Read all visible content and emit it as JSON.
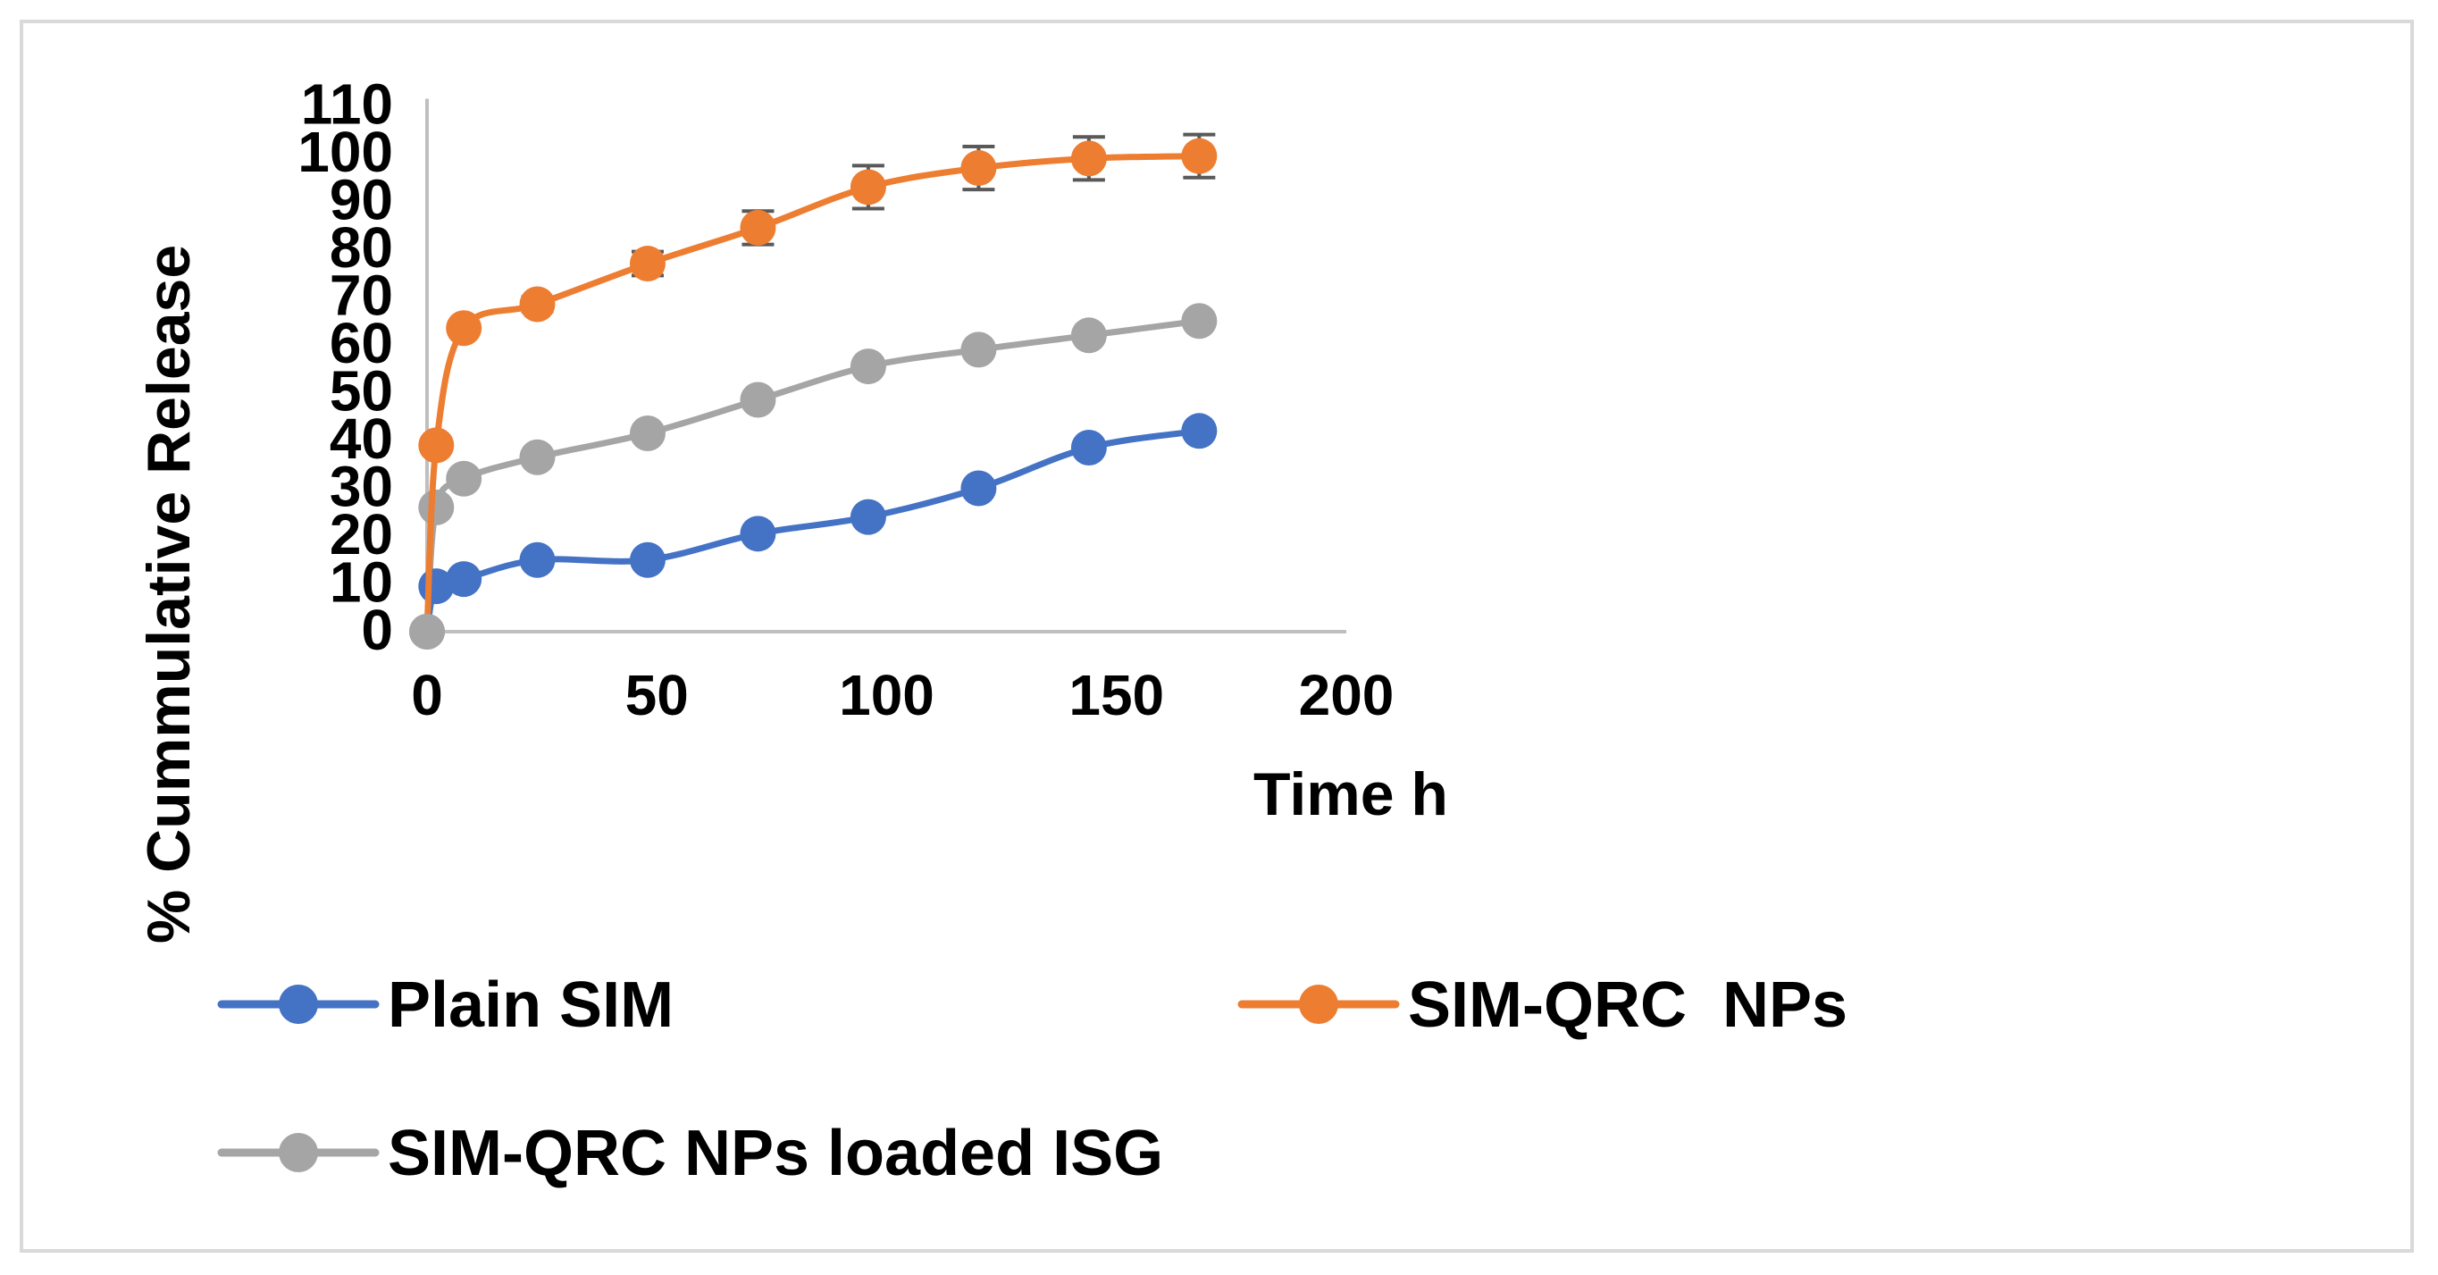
{
  "chart_data": {
    "type": "line",
    "title": "",
    "xlabel": "Time h",
    "ylabel": "% Cummulative Release",
    "xlim": [
      0,
      200
    ],
    "ylim": [
      0,
      110
    ],
    "x_ticks": [
      0,
      50,
      100,
      150,
      200
    ],
    "y_ticks": [
      0,
      10,
      20,
      30,
      40,
      50,
      60,
      70,
      80,
      90,
      100,
      110
    ],
    "x": [
      0,
      2,
      8,
      24,
      48,
      72,
      96,
      120,
      144,
      168
    ],
    "series": [
      {
        "name": "Plain SIM",
        "color": "#4472c4",
        "values": [
          0,
          9.5,
          11,
          15,
          15,
          20.5,
          24,
          30,
          38.5,
          42
        ]
      },
      {
        "name": "SIM-QRC  NPs",
        "color": "#ed7d31",
        "values": [
          0,
          39,
          63.5,
          68.5,
          77,
          84.5,
          93,
          97,
          99,
          99.5
        ],
        "error": [
          0,
          0,
          0,
          1.5,
          2.5,
          3.5,
          4.5,
          4.5,
          4.5,
          4.5
        ]
      },
      {
        "name": "SIM-QRC NPs loaded ISG",
        "color": "#a5a5a5",
        "values": [
          0,
          26,
          32,
          36.5,
          41.5,
          48.5,
          55.5,
          59,
          62,
          65
        ]
      }
    ],
    "legend_position": "bottom",
    "grid": false
  }
}
